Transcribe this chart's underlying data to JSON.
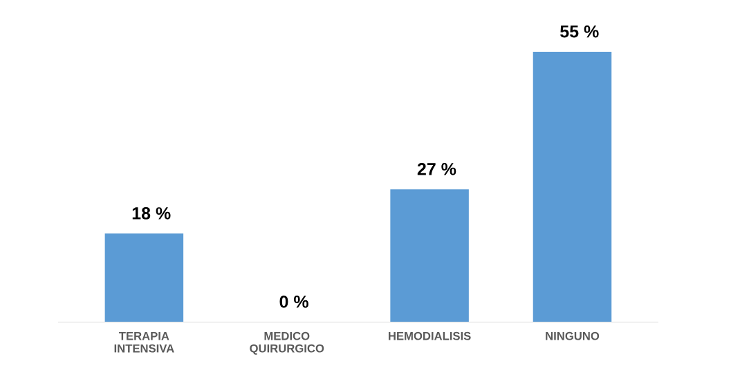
{
  "chart_data": {
    "type": "bar",
    "categories": [
      "TERAPIA\nINTENSIVA",
      "MEDICO\nQUIRURGICO",
      "HEMODIALISIS",
      "NINGUNO"
    ],
    "series": [
      {
        "color": "#5b9bd5",
        "values": [
          18,
          0,
          27,
          55
        ],
        "value_labels": [
          "18 %",
          "0 %",
          "27 %",
          "55 %"
        ]
      }
    ],
    "grid": false,
    "legend": false
  }
}
